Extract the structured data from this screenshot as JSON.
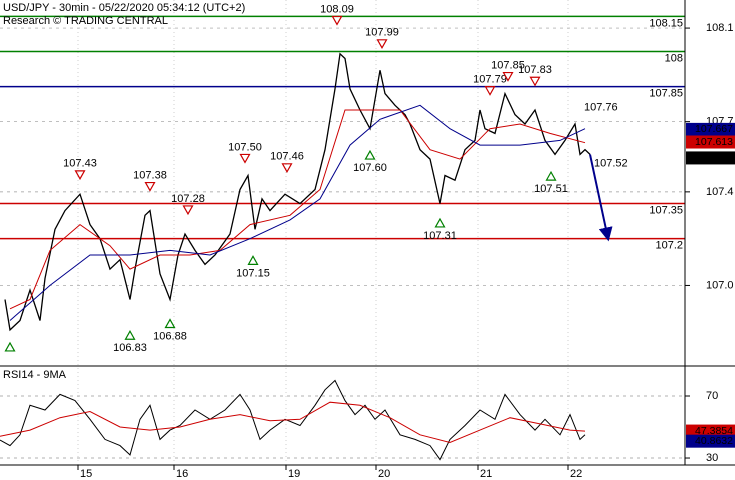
{
  "chart_data": [
    {
      "type": "line",
      "title": "USD/JPY - 30min - 05/22/2020 05:34:12 (UTC+2)",
      "subtitle": "Research © TRADING CENTRAL",
      "xlim": [
        0,
        342.5
      ],
      "ylim": [
        106.66,
        108.22
      ],
      "xticks": [
        {
          "value": 39,
          "label": "15"
        },
        {
          "value": 87,
          "label": "16"
        },
        {
          "value": 143,
          "label": "19"
        },
        {
          "value": 188,
          "label": "20"
        },
        {
          "value": 239,
          "label": "21"
        },
        {
          "value": 284,
          "label": "22"
        }
      ],
      "yticks": [
        108.1,
        107.7,
        107.4,
        {
          "value": 107,
          "label": "107.0"
        }
      ],
      "grid": true,
      "series": [
        {
          "color": "#000000",
          "width": 1.3,
          "x": [
            2.5,
            5,
            10,
            15,
            20,
            22.5,
            27.5,
            32.5,
            40,
            45,
            50,
            55,
            60,
            65,
            67.5,
            72.5,
            75,
            80,
            85,
            89,
            92.5,
            97.5,
            102.5,
            107.5,
            115,
            120,
            124,
            127.5,
            131,
            135,
            142.5,
            150,
            157.5,
            162.5,
            167.5,
            170,
            172.5,
            175,
            180,
            185,
            190,
            192.5,
            197.5,
            202.5,
            205,
            210,
            215,
            220,
            222.5,
            227.5,
            232.5,
            237.5,
            240,
            242.5,
            247.5,
            252.5,
            257.5,
            262.5,
            267.5,
            272.5,
            277.5,
            282.5,
            287.5,
            290,
            292.5,
            295
          ],
          "values": [
            106.94,
            106.81,
            106.85,
            106.98,
            106.85,
            107.03,
            107.24,
            107.32,
            107.39,
            107.26,
            107.2,
            107.07,
            107.11,
            106.94,
            107.07,
            107.3,
            107.32,
            107.05,
            106.94,
            107.13,
            107.22,
            107.15,
            107.09,
            107.13,
            107.22,
            107.41,
            107.47,
            107.24,
            107.37,
            107.32,
            107.39,
            107.35,
            107.41,
            107.58,
            107.84,
            107.99,
            107.97,
            107.84,
            107.75,
            107.67,
            107.92,
            107.82,
            107.77,
            107.73,
            107.69,
            107.58,
            107.54,
            107.35,
            107.47,
            107.45,
            107.58,
            107.62,
            107.75,
            107.67,
            107.65,
            107.82,
            107.73,
            107.69,
            107.75,
            107.62,
            107.56,
            107.62,
            107.69,
            107.56,
            107.58,
            107.56
          ]
        },
        {
          "color": "#cc0000",
          "width": 1,
          "x": [
            5,
            15,
            25,
            40,
            55,
            65,
            80,
            95,
            110,
            125,
            145,
            160,
            172.5,
            185,
            200,
            215,
            230,
            245,
            260,
            275,
            292.5
          ],
          "values": [
            106.9,
            106.94,
            107.15,
            107.26,
            107.17,
            107.07,
            107.13,
            107.13,
            107.15,
            107.26,
            107.3,
            107.41,
            107.75,
            107.75,
            107.75,
            107.58,
            107.54,
            107.67,
            107.69,
            107.65,
            107.61
          ]
        },
        {
          "color": "#00008b",
          "width": 1,
          "x": [
            5,
            25,
            45,
            65,
            85,
            105,
            125,
            145,
            160,
            175,
            190,
            210,
            225,
            240,
            260,
            280,
            292.5
          ],
          "values": [
            106.85,
            107.0,
            107.13,
            107.13,
            107.15,
            107.13,
            107.2,
            107.28,
            107.37,
            107.6,
            107.71,
            107.77,
            107.67,
            107.6,
            107.6,
            107.62,
            107.67
          ]
        }
      ],
      "levels": [
        {
          "value": 108.15,
          "color": "#008000"
        },
        {
          "value": 108,
          "color": "#008000"
        },
        {
          "value": 107.85,
          "color": "#00008b"
        },
        {
          "value": 107.35,
          "color": "#cc0000"
        },
        {
          "value": 107.2,
          "color": "#cc0000"
        }
      ],
      "lows": [
        {
          "x": 5,
          "value": 106.78
        },
        {
          "x": 65,
          "value": 106.83,
          "label": "106.83"
        },
        {
          "x": 85,
          "value": 106.88,
          "label": "106.88"
        },
        {
          "x": 126.5,
          "value": 107.15,
          "label": "107.15"
        },
        {
          "x": 185,
          "value": 107.6,
          "label": "107.60"
        },
        {
          "x": 220,
          "value": 107.31,
          "label": "107.31"
        },
        {
          "x": 275.5,
          "value": 107.51,
          "label": "107.51"
        }
      ],
      "highs": [
        {
          "x": 40,
          "value": 107.43,
          "label": "107.43"
        },
        {
          "x": 75,
          "value": 107.38,
          "label": "107.38"
        },
        {
          "x": 94,
          "value": 107.28,
          "label": "107.28"
        },
        {
          "x": 122.5,
          "value": 107.5,
          "label": "107.50"
        },
        {
          "x": 143.5,
          "value": 107.46,
          "label": "107.46"
        },
        {
          "x": 168.5,
          "value": 108.09,
          "label": "108.09"
        },
        {
          "x": 191,
          "value": 107.99,
          "label": "107.99"
        },
        {
          "x": 245,
          "value": 107.79,
          "label": "107.79"
        },
        {
          "x": 254,
          "value": 107.85,
          "label": "107.85"
        },
        {
          "x": 267.5,
          "value": 107.83,
          "label": "107.83"
        }
      ],
      "notes": [
        {
          "x": 292,
          "value": 107.76,
          "label": "107.76"
        },
        {
          "x": 297,
          "value": 107.52,
          "label": "107.52"
        }
      ],
      "last_values": [
        {
          "value": 107.667,
          "color": "#00008b"
        },
        {
          "value": 107.613,
          "color": "#cc0000"
        },
        {
          "value": 107.545,
          "color": "#000000"
        }
      ]
    },
    {
      "type": "line",
      "title": "RSI14 - 9MA",
      "xlim": [
        0,
        342.5
      ],
      "ylim": [
        25.5,
        88.7
      ],
      "yticks": [
        70,
        30
      ],
      "series": [
        {
          "color": "#000000",
          "width": 1,
          "x": [
            0,
            5,
            10,
            15,
            22.5,
            30,
            37.5,
            45,
            52.5,
            60,
            65,
            70,
            75,
            80,
            85,
            90,
            97.5,
            105,
            112.5,
            120,
            125,
            130,
            135,
            142.5,
            150,
            157.5,
            162.5,
            167.5,
            172.5,
            177.5,
            182.5,
            187.5,
            192.5,
            200,
            207.5,
            215,
            220,
            225,
            232.5,
            240,
            247.5,
            252.5,
            260,
            267.5,
            272.5,
            280,
            285,
            290,
            292.5
          ],
          "values": [
            41.6,
            38,
            45,
            64,
            61,
            71,
            67,
            55,
            42,
            38,
            32,
            55,
            64,
            42,
            48,
            51,
            61,
            55,
            61,
            71,
            61,
            42,
            48,
            55,
            51,
            64,
            74,
            80,
            67,
            58,
            64,
            55,
            61,
            45,
            42,
            38,
            29,
            42,
            51,
            61,
            55,
            71,
            58,
            48,
            55,
            45,
            58,
            42,
            45
          ]
        },
        {
          "color": "#cc0000",
          "width": 1,
          "x": [
            0,
            15,
            30,
            45,
            60,
            75,
            90,
            105,
            120,
            135,
            150,
            165,
            180,
            195,
            210,
            225,
            240,
            255,
            270,
            285,
            292.5
          ],
          "values": [
            44,
            48,
            56,
            60,
            50,
            48,
            50,
            55,
            58,
            54,
            55,
            66,
            64,
            56,
            45,
            40,
            48,
            56,
            52,
            48,
            47.39
          ]
        }
      ],
      "last_values": [
        {
          "value": 47.3854,
          "color": "#cc0000"
        },
        {
          "value": 40.8632,
          "color": "#00008b"
        }
      ]
    }
  ]
}
